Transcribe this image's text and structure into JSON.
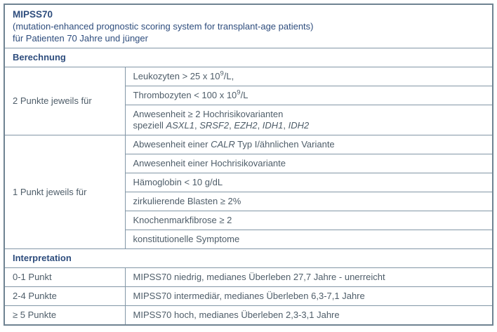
{
  "colors": {
    "header_bg": "#e5eff8",
    "row_bg": "#ffffff",
    "outer_border": "#6f8392",
    "inner_border": "#8296a6",
    "heading_text": "#2e4d7d",
    "body_text": "#4e5d69"
  },
  "table": {
    "title": "MIPSS70",
    "subtitle_en": "(mutation-enhanced prognostic scoring system for transplant-age patients)",
    "subtitle_de": "für Patienten 70 Jahre und jünger",
    "sections": {
      "calculation": {
        "header": "Berechnung",
        "groups": [
          {
            "label": "2 Punkte jeweils für",
            "criteria": [
              [
                {
                  "t": "Leukozyten > 25 x 10"
                },
                {
                  "t": "9",
                  "s": true
                },
                {
                  "t": "/L,"
                }
              ],
              [
                {
                  "t": "Thrombozyten < 100 x 10"
                },
                {
                  "t": "9",
                  "s": true
                },
                {
                  "t": "/L"
                }
              ],
              [
                {
                  "t": "Anwesenheit ≥ 2 Hochrisikovarianten"
                },
                {
                  "br": true
                },
                {
                  "t": "speziell "
                },
                {
                  "t": "ASXL1",
                  "i": true
                },
                {
                  "t": ", "
                },
                {
                  "t": "SRSF2",
                  "i": true
                },
                {
                  "t": ", "
                },
                {
                  "t": "EZH2",
                  "i": true
                },
                {
                  "t": ", "
                },
                {
                  "t": "IDH1",
                  "i": true
                },
                {
                  "t": ", "
                },
                {
                  "t": "IDH2",
                  "i": true
                }
              ]
            ]
          },
          {
            "label": "1 Punkt jeweils für",
            "criteria": [
              [
                {
                  "t": "Abwesenheit einer "
                },
                {
                  "t": "CALR",
                  "i": true
                },
                {
                  "t": " Typ I/ähnlichen Variante"
                }
              ],
              [
                {
                  "t": "Anwesenheit einer Hochrisikovariante"
                }
              ],
              [
                {
                  "t": "Hämoglobin < 10 g/dL"
                }
              ],
              [
                {
                  "t": "zirkulierende Blasten ≥ 2%"
                }
              ],
              [
                {
                  "t": "Knochenmarkfibrose ≥ 2"
                }
              ],
              [
                {
                  "t": "konstitutionelle Symptome"
                }
              ]
            ]
          }
        ]
      },
      "interpretation": {
        "header": "Interpretation",
        "rows": [
          {
            "points": "0-1 Punkt",
            "result": "MIPSS70 niedrig, medianes Überleben 27,7 Jahre - unerreicht"
          },
          {
            "points": "2-4 Punkte",
            "result": "MIPSS70 intermediär, medianes Überleben 6,3-7,1 Jahre"
          },
          {
            "points": "≥ 5 Punkte",
            "result": "MIPSS70 hoch, medianes Überleben 2,3-3,1 Jahre"
          }
        ]
      }
    }
  }
}
